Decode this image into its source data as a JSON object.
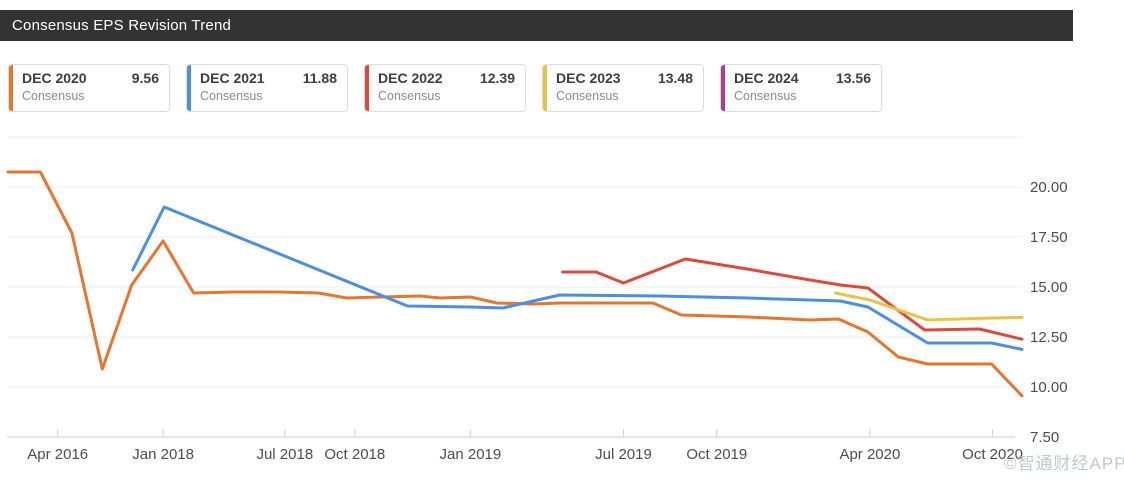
{
  "title_bar": {
    "title": "Consensus EPS Revision Trend"
  },
  "watermark": "©智通财经APP",
  "legend": {
    "sublabel": "Consensus"
  },
  "chart_data": {
    "type": "line",
    "title": "Consensus EPS Revision Trend",
    "grid": true,
    "legend_position": "top",
    "x_units": "percent-of-plot-width (ordinal date axis, unevenly spaced dates)",
    "x_axis": {
      "ticks": [
        {
          "label": "Apr 2016",
          "pos": 4.9
        },
        {
          "label": "Jan 2018",
          "pos": 15.3
        },
        {
          "label": "Jul 2018",
          "pos": 27.3
        },
        {
          "label": "Oct 2018",
          "pos": 34.2
        },
        {
          "label": "Jan 2019",
          "pos": 45.6
        },
        {
          "label": "Jul 2019",
          "pos": 60.7
        },
        {
          "label": "Oct 2019",
          "pos": 69.9
        },
        {
          "label": "Apr 2020",
          "pos": 85.0
        },
        {
          "label": "Oct 2020",
          "pos": 97.1
        }
      ]
    },
    "y_axis": {
      "min": 7.5,
      "max": 22.5,
      "side": "right",
      "ticks": [
        {
          "label": "20.00",
          "value": 20.0
        },
        {
          "label": "17.50",
          "value": 17.5
        },
        {
          "label": "15.00",
          "value": 15.0
        },
        {
          "label": "12.50",
          "value": 12.5
        },
        {
          "label": "10.00",
          "value": 10.0
        },
        {
          "label": "7.50",
          "value": 7.5
        }
      ],
      "unlabeled_gridlines": [
        22.5
      ]
    },
    "series": [
      {
        "name": "DEC 2020",
        "sublabel": "Consensus",
        "consensus_value": "9.56",
        "color": "#E8752C",
        "points": [
          [
            0,
            20.75
          ],
          [
            3.2,
            20.75
          ],
          [
            6.3,
            17.7
          ],
          [
            9.3,
            10.9
          ],
          [
            12.2,
            15.1
          ],
          [
            15.3,
            17.3
          ],
          [
            18.3,
            14.7
          ],
          [
            22.2,
            14.75
          ],
          [
            26.8,
            14.75
          ],
          [
            30.6,
            14.7
          ],
          [
            33.4,
            14.45
          ],
          [
            36.7,
            14.5
          ],
          [
            40.6,
            14.55
          ],
          [
            42.6,
            14.45
          ],
          [
            45.6,
            14.5
          ],
          [
            48.2,
            14.2
          ],
          [
            51.8,
            14.15
          ],
          [
            54.4,
            14.2
          ],
          [
            63.6,
            14.2
          ],
          [
            66.4,
            13.6
          ],
          [
            73,
            13.5
          ],
          [
            79.1,
            13.35
          ],
          [
            81.9,
            13.4
          ],
          [
            84.8,
            12.75
          ],
          [
            87.8,
            11.5
          ],
          [
            90.7,
            11.15
          ],
          [
            97,
            11.15
          ],
          [
            100,
            9.56
          ]
        ]
      },
      {
        "name": "DEC 2021",
        "sublabel": "Consensus",
        "consensus_value": "11.88",
        "color": "#4A90E2",
        "points": [
          [
            12.3,
            15.85
          ],
          [
            15.4,
            19.0
          ],
          [
            39.4,
            14.05
          ],
          [
            45.6,
            14.0
          ],
          [
            48.8,
            13.95
          ],
          [
            54.4,
            14.6
          ],
          [
            64.3,
            14.55
          ],
          [
            72.9,
            14.45
          ],
          [
            82.1,
            14.3
          ],
          [
            84.8,
            14.0
          ],
          [
            90.7,
            12.2
          ],
          [
            97,
            12.2
          ],
          [
            100,
            11.88
          ]
        ]
      },
      {
        "name": "DEC 2022",
        "sublabel": "Consensus",
        "consensus_value": "12.39",
        "color": "#DB4A3C",
        "points": [
          [
            54.7,
            15.75
          ],
          [
            58,
            15.75
          ],
          [
            60.7,
            15.2
          ],
          [
            66.8,
            16.4
          ],
          [
            72.9,
            15.9
          ],
          [
            79.1,
            15.35
          ],
          [
            82.1,
            15.1
          ],
          [
            84.8,
            14.95
          ],
          [
            90.4,
            12.85
          ],
          [
            95.8,
            12.9
          ],
          [
            100,
            12.39
          ]
        ]
      },
      {
        "name": "DEC 2023",
        "sublabel": "Consensus",
        "consensus_value": "13.48",
        "color": "#E9C441",
        "points": [
          [
            81.6,
            14.7
          ],
          [
            85,
            14.35
          ],
          [
            90.7,
            13.35
          ],
          [
            97,
            13.45
          ],
          [
            100,
            13.48
          ]
        ]
      },
      {
        "name": "DEC 2024",
        "sublabel": "Consensus",
        "consensus_value": "13.56",
        "color": "#B13A97",
        "points": [
          [
            100,
            13.56
          ]
        ]
      }
    ]
  }
}
